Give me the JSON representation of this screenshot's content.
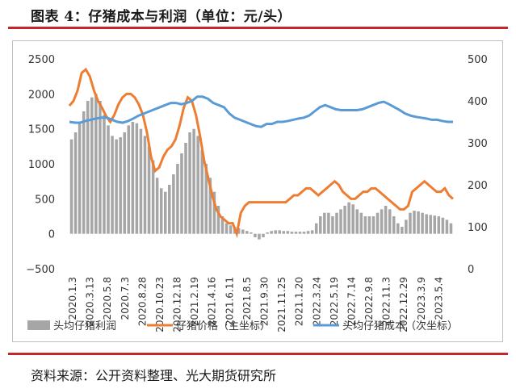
{
  "header": {
    "title": "图表 4：仔猪成本与利润（单位：元/头）"
  },
  "footer": {
    "source": "资料来源：公开资料整理、光大期货研究所"
  },
  "colors": {
    "accent_rule": "#c3272b",
    "profit_bars": "#a6a6a6",
    "price_line": "#ed7d31",
    "cost_line": "#5b9bd5"
  },
  "chart_data": {
    "type": "bar+line",
    "title": "",
    "xlabel": "",
    "ylabel": "",
    "y_left_lim": [
      -500,
      2500
    ],
    "y_left_ticks": [
      "2500",
      "2000",
      "1500",
      "1000",
      "500",
      "0",
      "−500"
    ],
    "y_right_lim": [
      0,
      500
    ],
    "y_right_ticks": [
      "500",
      "400",
      "300",
      "200",
      "100",
      "0"
    ],
    "x_tick_labels": [
      "2020.1.3",
      "2020.3.13",
      "2020.5.8",
      "2020.7.3",
      "2020.8.28",
      "2020.10.23",
      "2020.12.18",
      "2021.2.19",
      "2021.4.16",
      "2021.6.11",
      "2021.8.5",
      "2021.9.30",
      "2021.11.25",
      "2021.1.20",
      "2022.3.24",
      "2022.5.19",
      "2022.7.14",
      "2022.9.8",
      "2022.11.3",
      "2022.12.29",
      "2023.3.9",
      "2023.5.4"
    ],
    "grid": false,
    "legend_position": "bottom",
    "legend": {
      "profit": "头均仔猪利润",
      "price": "仔猪价格（主坐标）",
      "cost": "头均仔猪成本（次坐标）"
    },
    "series": [
      {
        "name": "头均仔猪利润",
        "kind": "bar",
        "axis": "left",
        "values": [
          1350,
          1450,
          1600,
          1750,
          1900,
          1950,
          2000,
          1900,
          1700,
          1550,
          1400,
          1350,
          1380,
          1450,
          1550,
          1600,
          1580,
          1500,
          1400,
          1250,
          1050,
          800,
          650,
          600,
          700,
          850,
          1000,
          1150,
          1300,
          1450,
          1500,
          1400,
          1200,
          1000,
          800,
          600,
          400,
          250,
          150,
          120,
          100,
          80,
          60,
          40,
          20,
          -50,
          -80,
          -50,
          20,
          40,
          50,
          50,
          40,
          40,
          30,
          30,
          30,
          30,
          40,
          50,
          150,
          250,
          300,
          300,
          250,
          300,
          350,
          400,
          450,
          420,
          350,
          300,
          250,
          250,
          250,
          300,
          350,
          400,
          350,
          250,
          150,
          100,
          200,
          300,
          330,
          320,
          300,
          280,
          270,
          260,
          250,
          230,
          200,
          150
        ],
        "series_index": "approx weekly"
      },
      {
        "name": "仔猪价格（主坐标）",
        "kind": "line",
        "axis": "left",
        "values": [
          1830,
          1900,
          2050,
          2300,
          2350,
          2250,
          2050,
          1900,
          1800,
          1680,
          1600,
          1700,
          1850,
          1950,
          2000,
          2000,
          1950,
          1850,
          1700,
          1450,
          1100,
          900,
          950,
          1100,
          1200,
          1250,
          1350,
          1550,
          1800,
          1950,
          1900,
          1700,
          1400,
          1050,
          800,
          550,
          350,
          250,
          200,
          150,
          150,
          0,
          300,
          400,
          450,
          450,
          450,
          450,
          450,
          450,
          450,
          450,
          450,
          450,
          500,
          550,
          550,
          600,
          650,
          650,
          600,
          550,
          600,
          650,
          700,
          750,
          700,
          600,
          550,
          500,
          500,
          550,
          600,
          600,
          650,
          650,
          600,
          550,
          500,
          450,
          400,
          350,
          350,
          400,
          600,
          650,
          700,
          750,
          700,
          650,
          600,
          600,
          650,
          550,
          500
        ],
        "note": "left-axis scale"
      },
      {
        "name": "头均仔猪成本（次坐标）",
        "kind": "line",
        "axis": "right",
        "values": [
          350,
          348,
          348,
          352,
          355,
          358,
          360,
          360,
          355,
          350,
          348,
          352,
          358,
          365,
          370,
          375,
          380,
          385,
          390,
          395,
          395,
          392,
          395,
          400,
          410,
          410,
          405,
          395,
          390,
          385,
          370,
          360,
          355,
          350,
          345,
          340,
          338,
          345,
          345,
          350,
          350,
          352,
          355,
          358,
          360,
          365,
          375,
          385,
          390,
          385,
          380,
          378,
          378,
          378,
          378,
          380,
          385,
          390,
          395,
          398,
          392,
          385,
          378,
          370,
          365,
          362,
          360,
          358,
          355,
          355,
          352,
          350,
          350
        ],
        "note": "right-axis scale"
      }
    ]
  }
}
